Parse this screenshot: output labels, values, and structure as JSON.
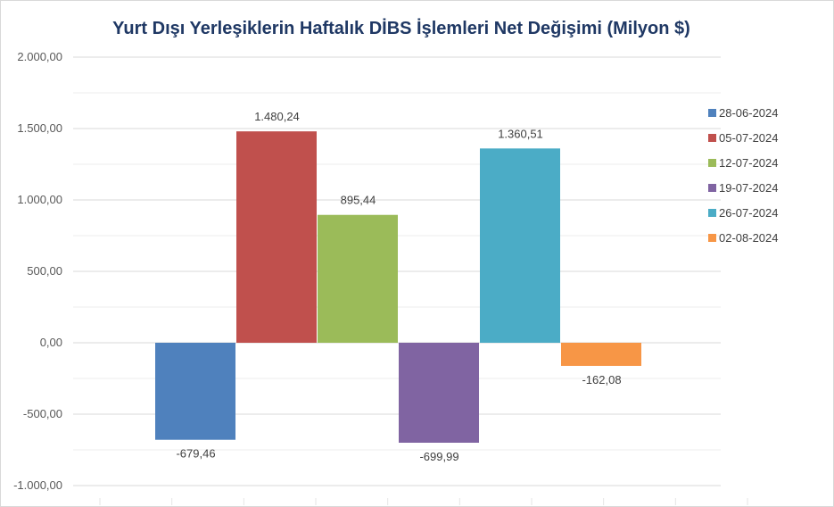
{
  "chart_data": {
    "type": "bar",
    "title": "Yurt Dışı Yerleşiklerin Haftalık DİBS İşlemleri Net Değişimi (Milyon $)",
    "xlabel": "",
    "ylabel": "",
    "ylim": [
      -1000,
      2000
    ],
    "y_ticks": [
      2000,
      1500,
      1000,
      500,
      0,
      -500,
      -1000
    ],
    "y_tick_labels": [
      "2.000,00",
      "1.500,00",
      "1.000,00",
      "500,00",
      "0,00",
      "-500,00",
      "-1.000,00"
    ],
    "grid": true,
    "legend_position": "right",
    "series": [
      {
        "name": "28-06-2024",
        "value": -679.46,
        "label": "-679,46",
        "color": "#4f81bd"
      },
      {
        "name": "05-07-2024",
        "value": 1480.24,
        "label": "1.480,24",
        "color": "#c0504d"
      },
      {
        "name": "12-07-2024",
        "value": 895.44,
        "label": "895,44",
        "color": "#9bbb59"
      },
      {
        "name": "19-07-2024",
        "value": -699.99,
        "label": "-699,99",
        "color": "#8064a2"
      },
      {
        "name": "26-07-2024",
        "value": 1360.51,
        "label": "1.360,51",
        "color": "#4bacc6"
      },
      {
        "name": "02-08-2024",
        "value": -162.08,
        "label": "-162,08",
        "color": "#f79646"
      }
    ]
  }
}
